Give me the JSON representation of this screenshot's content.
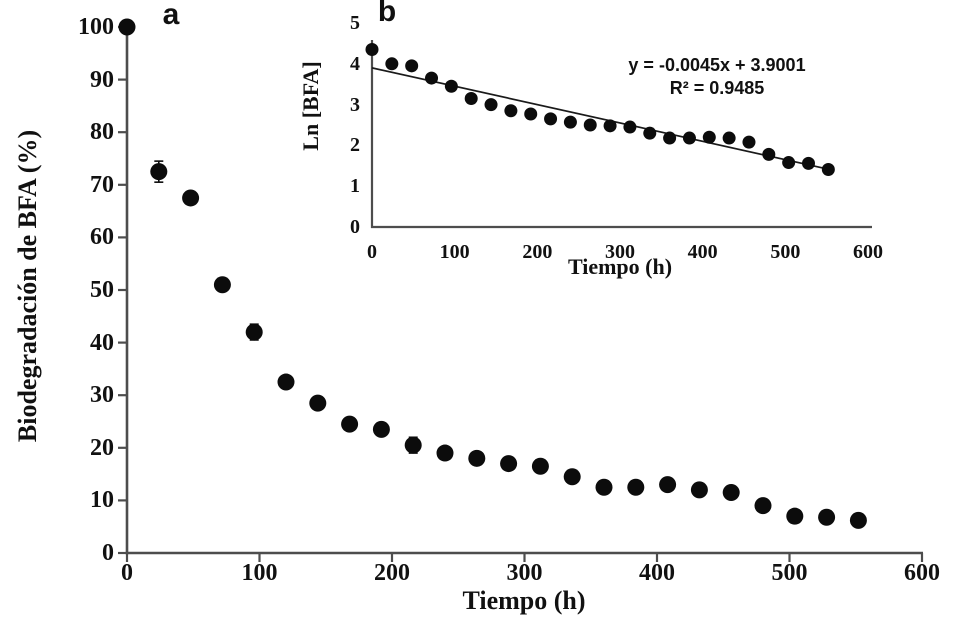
{
  "figure": {
    "background": "#ffffff"
  },
  "colors": {
    "marker": "#0c0c0c",
    "axis": "#4d4d4d",
    "trendline": "#1a1a1a",
    "text": "#111111"
  },
  "chart_data": [
    {
      "id": "main",
      "panel": "a",
      "type": "scatter",
      "xlabel": "Tiempo (h)",
      "ylabel": "Biodegradación de BFA (%)",
      "xlim": [
        0,
        600
      ],
      "ylim": [
        0,
        100
      ],
      "xticks": [
        0,
        100,
        200,
        300,
        400,
        500,
        600
      ],
      "yticks": [
        0,
        10,
        20,
        30,
        40,
        50,
        60,
        70,
        80,
        90,
        100
      ],
      "grid": false,
      "legend": false,
      "marker": "filled-black-circle",
      "x": [
        0,
        24,
        48,
        72,
        96,
        120,
        144,
        168,
        192,
        216,
        240,
        264,
        288,
        312,
        336,
        360,
        384,
        408,
        432,
        456,
        480,
        504,
        528,
        552
      ],
      "y": [
        100,
        72.5,
        67.5,
        51,
        42,
        32.5,
        28.5,
        24.5,
        23.5,
        20.5,
        19,
        18,
        17,
        16.5,
        14.5,
        12.5,
        12.5,
        13,
        12,
        11.5,
        9,
        7,
        6.8,
        6.2
      ],
      "yerr": [
        0,
        2,
        0,
        0,
        1.5,
        0,
        0,
        0,
        0,
        1.5,
        0,
        0,
        0,
        0,
        0,
        0,
        0,
        0,
        0,
        0,
        0,
        0,
        0,
        0
      ]
    },
    {
      "id": "inset",
      "panel": "b",
      "type": "scatter",
      "xlabel": "Tiempo (h)",
      "ylabel": "Ln [BFA]",
      "xlim": [
        0,
        600
      ],
      "ylim": [
        0,
        5
      ],
      "xticks": [
        0,
        100,
        200,
        300,
        400,
        500,
        600
      ],
      "yticks": [
        0,
        1,
        2,
        3,
        4,
        5
      ],
      "grid": false,
      "legend": false,
      "marker": "filled-black-circle",
      "x": [
        0,
        24,
        48,
        72,
        96,
        120,
        144,
        168,
        192,
        216,
        240,
        264,
        288,
        312,
        336,
        360,
        384,
        408,
        432,
        456,
        480,
        504,
        528,
        552
      ],
      "y": [
        4.35,
        4.0,
        3.95,
        3.65,
        3.45,
        3.15,
        3.0,
        2.85,
        2.77,
        2.65,
        2.57,
        2.5,
        2.48,
        2.45,
        2.3,
        2.18,
        2.18,
        2.2,
        2.18,
        2.08,
        1.78,
        1.58,
        1.56,
        1.41
      ],
      "trendline": {
        "slope": -0.0045,
        "intercept": 3.9001,
        "x_range": [
          0,
          556
        ],
        "equation_label": "y = -0.0045x + 3.9001",
        "r_squared_label": "R² = 0.9485"
      }
    }
  ]
}
